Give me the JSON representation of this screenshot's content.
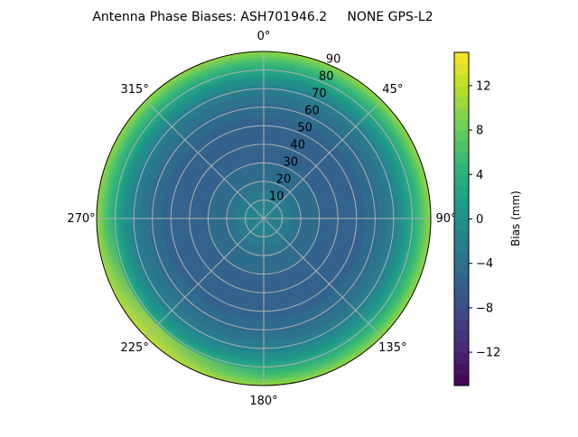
{
  "chart_data": {
    "type": "polar-contour",
    "title": "Antenna Phase Biases: ASH701946.2     NONE GPS-L2",
    "angular_ticks": [
      "0°",
      "45°",
      "90°",
      "135°",
      "180°",
      "225°",
      "270°",
      "315°"
    ],
    "radial_ticks": [
      "10",
      "20",
      "30",
      "40",
      "50",
      "60",
      "70",
      "80",
      "90"
    ],
    "radial_range": [
      0,
      90
    ],
    "grid": true,
    "colormap": "viridis",
    "colorbar": {
      "label": "Bias (mm)",
      "range": [
        -15,
        15
      ],
      "ticks": [
        "12",
        "8",
        "4",
        "0",
        "−4",
        "−8",
        "−12"
      ],
      "tick_values": [
        12,
        8,
        4,
        0,
        -4,
        -8,
        -12
      ],
      "levels": 30
    },
    "zenith_profile": {
      "zenith": [
        0,
        5,
        10,
        15,
        20,
        25,
        30,
        35,
        40,
        45,
        50,
        55,
        60,
        65,
        70,
        75,
        80,
        85,
        90
      ],
      "bias": [
        -1,
        -1.5,
        -2,
        -3,
        -4,
        -4.5,
        -5,
        -5.5,
        -5.5,
        -5.5,
        -5.5,
        -5,
        -4.5,
        -3.5,
        -2,
        0,
        3,
        6,
        10
      ]
    }
  }
}
